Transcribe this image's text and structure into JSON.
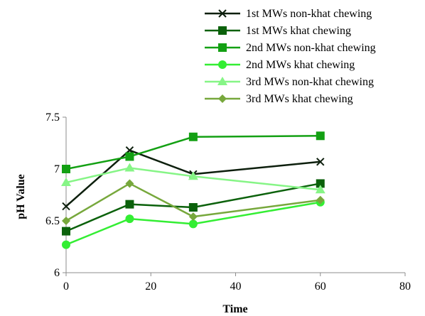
{
  "chart_data": {
    "type": "line",
    "title": "",
    "xlabel": "Time",
    "ylabel": "pH Value",
    "xlim": [
      0,
      80
    ],
    "ylim": [
      6,
      7.5
    ],
    "xticks": [
      0,
      20,
      40,
      60,
      80
    ],
    "yticks": [
      6,
      6.5,
      7,
      7.5
    ],
    "xtick_labels": [
      "0",
      "20",
      "40",
      "60",
      "80"
    ],
    "ytick_labels": [
      "6",
      "6.5",
      "7",
      "7.5"
    ],
    "grid": false,
    "legend_position": "top-right",
    "x": [
      0,
      15,
      30,
      60
    ],
    "series": [
      {
        "name": "1st MWs non-khat chewing",
        "values": [
          6.64,
          7.18,
          6.95,
          7.07
        ],
        "color": "#0d1f0d",
        "marker": "x"
      },
      {
        "name": "1st MWs khat chewing",
        "values": [
          6.4,
          6.66,
          6.63,
          6.86
        ],
        "color": "#0b610b",
        "marker": "square"
      },
      {
        "name": "2nd MWs non-khat chewing",
        "values": [
          7.0,
          7.12,
          7.31,
          7.32
        ],
        "color": "#13a013",
        "marker": "square"
      },
      {
        "name": "2nd MWs khat chewing",
        "values": [
          6.27,
          6.52,
          6.47,
          6.68
        ],
        "color": "#33ee33",
        "marker": "circle"
      },
      {
        "name": "3rd MWs non-khat chewing",
        "values": [
          6.87,
          7.01,
          6.93,
          6.8
        ],
        "color": "#86f586",
        "marker": "triangle"
      },
      {
        "name": "3rd MWs khat chewing",
        "values": [
          6.5,
          6.86,
          6.54,
          6.7
        ],
        "color": "#77a83c",
        "marker": "diamond"
      }
    ]
  }
}
